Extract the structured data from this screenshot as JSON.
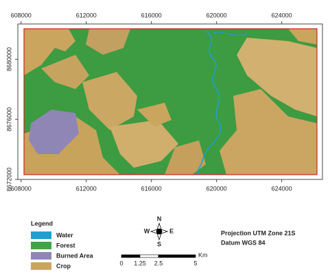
{
  "map": {
    "xlim": [
      607800,
      626500
    ],
    "ylim": [
      8672000,
      8682350
    ],
    "xticks": [
      608000,
      612000,
      616000,
      620000,
      624000
    ],
    "yticks": [
      8672000,
      8676000,
      8680000
    ],
    "legend": {
      "title": "Legend",
      "items": [
        {
          "label": "Water",
          "color": "#1e9fd0"
        },
        {
          "label": "Forest",
          "color": "#3fa447"
        },
        {
          "label": "Burned Area",
          "color": "#8f86b5"
        },
        {
          "label": "Crop",
          "color": "#c9a55e"
        }
      ]
    },
    "compass": {
      "north": "N",
      "south": "S",
      "east": "E",
      "west": "W"
    },
    "scale": {
      "ticks": [
        0,
        1.25,
        2.5,
        5
      ],
      "unit": "Km"
    },
    "projection": "Projection UTM Zone 21S",
    "datum": "Datum WGS 84"
  }
}
